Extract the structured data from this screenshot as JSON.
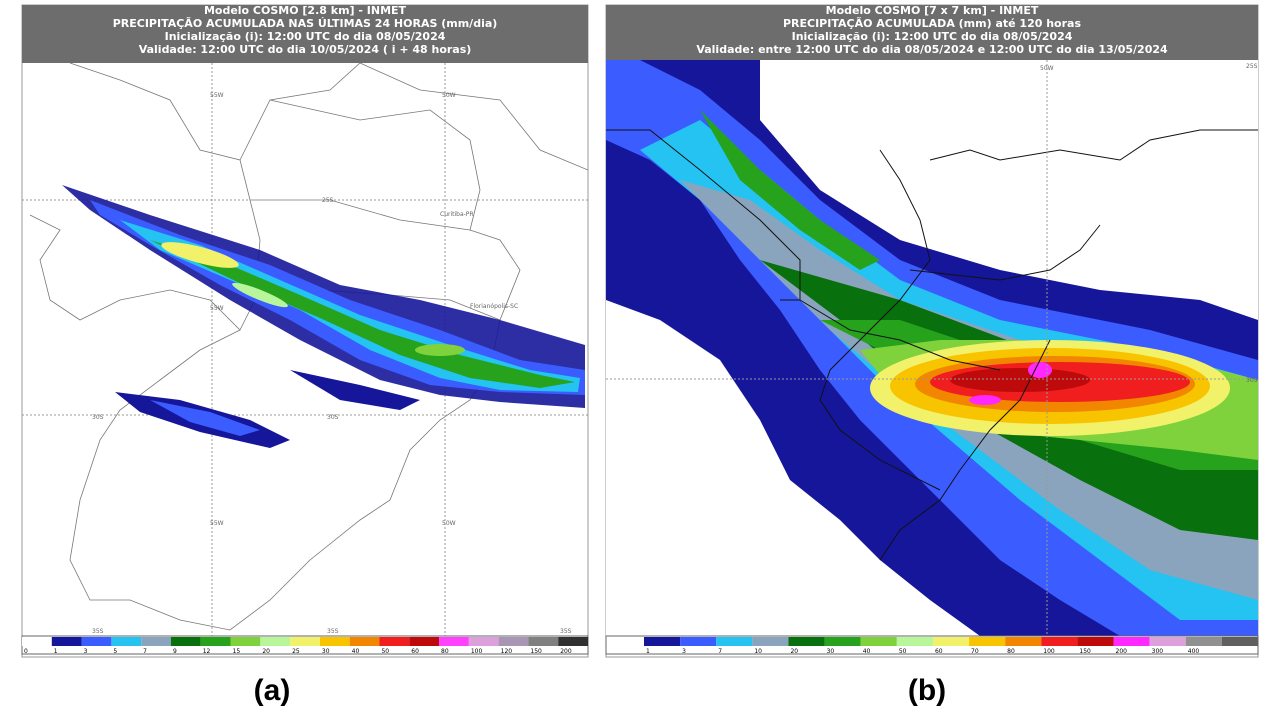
{
  "panel_a": {
    "header": [
      "Modelo COSMO [2.8 km] - INMET",
      "PRECIPITAÇÃO ACUMULADA NAS ÚLTIMAS 24 HORAS (mm/dia)",
      "Inicialização (i): 12:00 UTC do dia 08/05/2024",
      "Validade: 12:00 UTC do dia 10/05/2024 ( i + 48 horas)"
    ],
    "map_labels": [
      "55W",
      "50W",
      "25S",
      "Curitiba-PR",
      "55W",
      "Florianópolis-SC",
      "30S",
      "30S",
      "55W",
      "50W",
      "35S",
      "35S",
      "35S"
    ],
    "colorbar": {
      "labels": [
        "0",
        "1",
        "3",
        "5",
        "7",
        "9",
        "12",
        "15",
        "20",
        "25",
        "30",
        "40",
        "50",
        "60",
        "80",
        "100",
        "120",
        "150",
        "200"
      ],
      "colors": [
        "#ffffff",
        "#16169a",
        "#3b5cff",
        "#25c3f2",
        "#8aa4bd",
        "#08700c",
        "#26a21c",
        "#7fd23c",
        "#b9f59a",
        "#f2f26a",
        "#f8c400",
        "#f28600",
        "#f01e1e",
        "#be0a0a",
        "#ff40ff",
        "#dca0dc",
        "#a896b4",
        "#808080",
        "#303030"
      ]
    },
    "caption": "(a)"
  },
  "panel_b": {
    "header": [
      "Modelo COSMO [7 x 7 km] - INMET",
      "PRECIPITAÇÃO ACUMULADA (mm) até 120 horas",
      "Inicialização (i): 12:00 UTC do dia 08/05/2024",
      "Validade: entre 12:00 UTC do dia 08/05/2024 e 12:00 UTC do dia 13/05/2024"
    ],
    "map_labels": [
      "50W",
      "25S",
      "30S"
    ],
    "colorbar": {
      "labels": [
        "1",
        "3",
        "7",
        "10",
        "20",
        "30",
        "40",
        "50",
        "60",
        "70",
        "80",
        "100",
        "150",
        "200",
        "300",
        "400"
      ],
      "colors": [
        "#16169a",
        "#3b5cff",
        "#25c3f2",
        "#8aa4bd",
        "#08700c",
        "#26a21c",
        "#7fd23c",
        "#b9f59a",
        "#f2f26a",
        "#f8c400",
        "#f28600",
        "#f01e1e",
        "#be0a0a",
        "#ff28ff",
        "#dca0dc",
        "#909090",
        "#606060"
      ]
    },
    "caption": "(b)"
  }
}
